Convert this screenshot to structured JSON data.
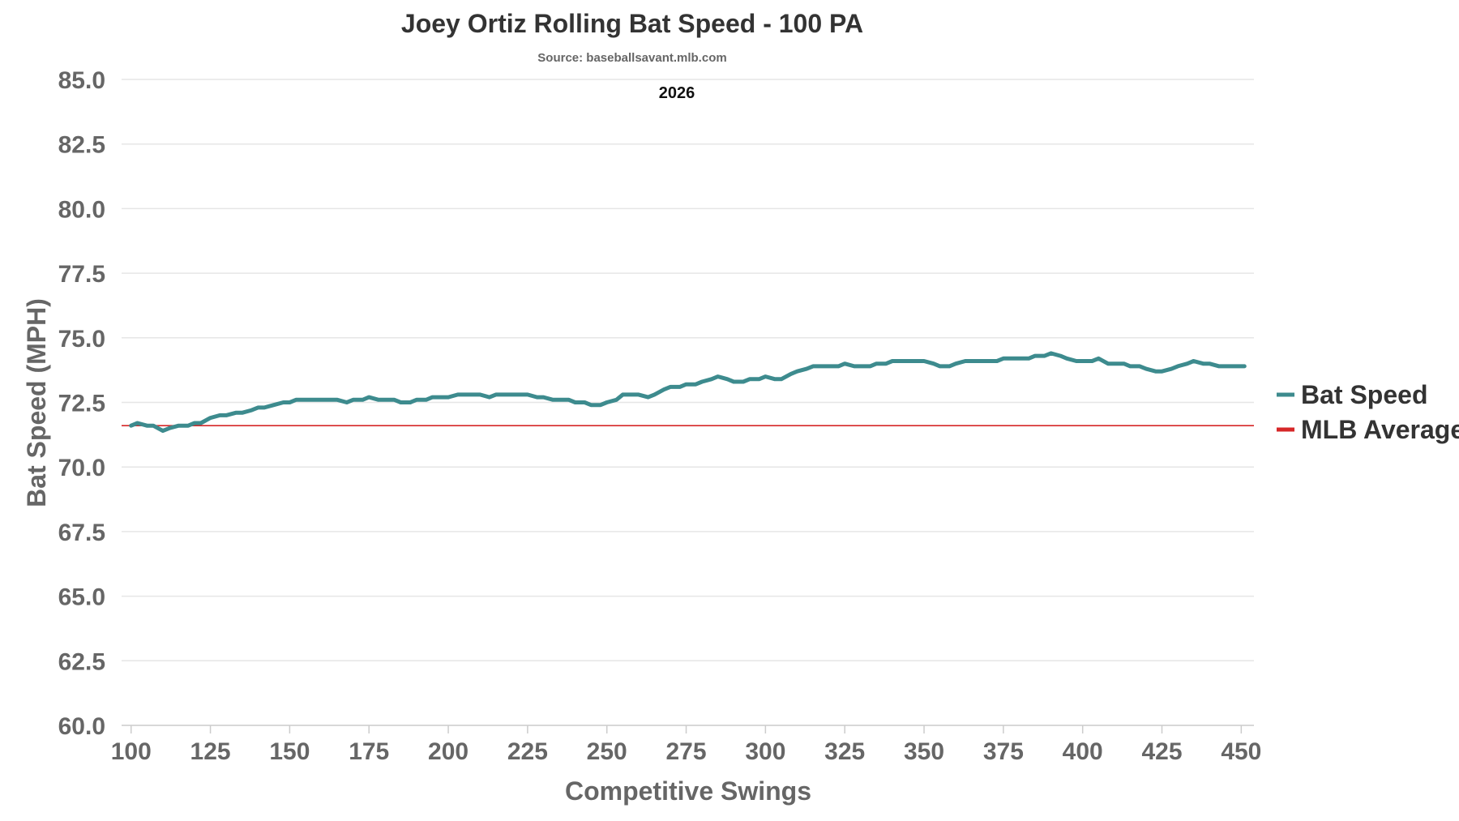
{
  "chart_data": {
    "type": "line",
    "title": "Joey Ortiz Rolling Bat Speed - 100 PA",
    "subtitle": "Source: baseballsavant.mlb.com",
    "annotation": "2026",
    "xlabel": "Competitive Swings",
    "ylabel": "Bat Speed (MPH)",
    "xlim": [
      97,
      454
    ],
    "ylim": [
      60,
      85
    ],
    "xticks": [
      100,
      125,
      150,
      175,
      200,
      225,
      250,
      275,
      300,
      325,
      350,
      375,
      400,
      425,
      450
    ],
    "yticks": [
      60.0,
      62.5,
      65.0,
      67.5,
      70.0,
      72.5,
      75.0,
      77.5,
      80.0,
      82.5,
      85.0
    ],
    "grid": true,
    "legend_position": "right",
    "series": [
      {
        "name": "Bat Speed",
        "color": "#3d8b8e",
        "points": [
          [
            100,
            71.6
          ],
          [
            102,
            71.7
          ],
          [
            105,
            71.6
          ],
          [
            107,
            71.6
          ],
          [
            110,
            71.4
          ],
          [
            112,
            71.5
          ],
          [
            115,
            71.6
          ],
          [
            118,
            71.6
          ],
          [
            120,
            71.7
          ],
          [
            122,
            71.7
          ],
          [
            125,
            71.9
          ],
          [
            128,
            72.0
          ],
          [
            130,
            72.0
          ],
          [
            133,
            72.1
          ],
          [
            135,
            72.1
          ],
          [
            138,
            72.2
          ],
          [
            140,
            72.3
          ],
          [
            142,
            72.3
          ],
          [
            145,
            72.4
          ],
          [
            148,
            72.5
          ],
          [
            150,
            72.5
          ],
          [
            152,
            72.6
          ],
          [
            155,
            72.6
          ],
          [
            158,
            72.6
          ],
          [
            160,
            72.6
          ],
          [
            163,
            72.6
          ],
          [
            165,
            72.6
          ],
          [
            168,
            72.5
          ],
          [
            170,
            72.6
          ],
          [
            173,
            72.6
          ],
          [
            175,
            72.7
          ],
          [
            178,
            72.6
          ],
          [
            180,
            72.6
          ],
          [
            183,
            72.6
          ],
          [
            185,
            72.5
          ],
          [
            188,
            72.5
          ],
          [
            190,
            72.6
          ],
          [
            193,
            72.6
          ],
          [
            195,
            72.7
          ],
          [
            198,
            72.7
          ],
          [
            200,
            72.7
          ],
          [
            203,
            72.8
          ],
          [
            205,
            72.8
          ],
          [
            208,
            72.8
          ],
          [
            210,
            72.8
          ],
          [
            213,
            72.7
          ],
          [
            215,
            72.8
          ],
          [
            218,
            72.8
          ],
          [
            220,
            72.8
          ],
          [
            223,
            72.8
          ],
          [
            225,
            72.8
          ],
          [
            228,
            72.7
          ],
          [
            230,
            72.7
          ],
          [
            233,
            72.6
          ],
          [
            235,
            72.6
          ],
          [
            238,
            72.6
          ],
          [
            240,
            72.5
          ],
          [
            243,
            72.5
          ],
          [
            245,
            72.4
          ],
          [
            248,
            72.4
          ],
          [
            250,
            72.5
          ],
          [
            253,
            72.6
          ],
          [
            255,
            72.8
          ],
          [
            258,
            72.8
          ],
          [
            260,
            72.8
          ],
          [
            263,
            72.7
          ],
          [
            265,
            72.8
          ],
          [
            268,
            73.0
          ],
          [
            270,
            73.1
          ],
          [
            273,
            73.1
          ],
          [
            275,
            73.2
          ],
          [
            278,
            73.2
          ],
          [
            280,
            73.3
          ],
          [
            283,
            73.4
          ],
          [
            285,
            73.5
          ],
          [
            288,
            73.4
          ],
          [
            290,
            73.3
          ],
          [
            293,
            73.3
          ],
          [
            295,
            73.4
          ],
          [
            298,
            73.4
          ],
          [
            300,
            73.5
          ],
          [
            303,
            73.4
          ],
          [
            305,
            73.4
          ],
          [
            308,
            73.6
          ],
          [
            310,
            73.7
          ],
          [
            313,
            73.8
          ],
          [
            315,
            73.9
          ],
          [
            318,
            73.9
          ],
          [
            320,
            73.9
          ],
          [
            323,
            73.9
          ],
          [
            325,
            74.0
          ],
          [
            328,
            73.9
          ],
          [
            330,
            73.9
          ],
          [
            333,
            73.9
          ],
          [
            335,
            74.0
          ],
          [
            338,
            74.0
          ],
          [
            340,
            74.1
          ],
          [
            343,
            74.1
          ],
          [
            345,
            74.1
          ],
          [
            348,
            74.1
          ],
          [
            350,
            74.1
          ],
          [
            353,
            74.0
          ],
          [
            355,
            73.9
          ],
          [
            358,
            73.9
          ],
          [
            360,
            74.0
          ],
          [
            363,
            74.1
          ],
          [
            365,
            74.1
          ],
          [
            368,
            74.1
          ],
          [
            370,
            74.1
          ],
          [
            373,
            74.1
          ],
          [
            375,
            74.2
          ],
          [
            378,
            74.2
          ],
          [
            380,
            74.2
          ],
          [
            383,
            74.2
          ],
          [
            385,
            74.3
          ],
          [
            388,
            74.3
          ],
          [
            390,
            74.4
          ],
          [
            393,
            74.3
          ],
          [
            395,
            74.2
          ],
          [
            398,
            74.1
          ],
          [
            400,
            74.1
          ],
          [
            403,
            74.1
          ],
          [
            405,
            74.2
          ],
          [
            408,
            74.0
          ],
          [
            410,
            74.0
          ],
          [
            413,
            74.0
          ],
          [
            415,
            73.9
          ],
          [
            418,
            73.9
          ],
          [
            420,
            73.8
          ],
          [
            423,
            73.7
          ],
          [
            425,
            73.7
          ],
          [
            428,
            73.8
          ],
          [
            430,
            73.9
          ],
          [
            433,
            74.0
          ],
          [
            435,
            74.1
          ],
          [
            438,
            74.0
          ],
          [
            440,
            74.0
          ],
          [
            443,
            73.9
          ],
          [
            445,
            73.9
          ],
          [
            448,
            73.9
          ],
          [
            450,
            73.9
          ],
          [
            451,
            73.9
          ]
        ]
      },
      {
        "name": "MLB Average",
        "color": "#d62728",
        "value": 71.6
      }
    ]
  }
}
